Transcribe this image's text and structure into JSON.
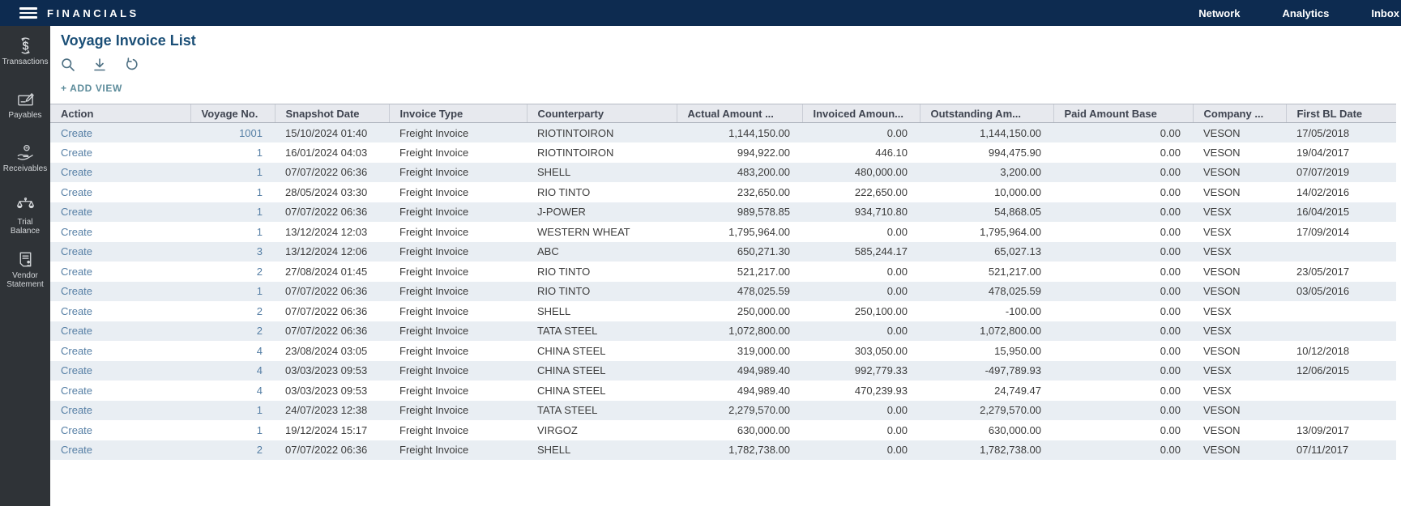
{
  "topbar": {
    "brand": "FINANCIALS",
    "links": [
      {
        "label": "Network"
      },
      {
        "label": "Analytics"
      },
      {
        "label": "Inbox"
      }
    ]
  },
  "sidebar": {
    "items": [
      {
        "icon": "transactions-icon",
        "label": "Transactions"
      },
      {
        "icon": "payables-icon",
        "label": "Payables"
      },
      {
        "icon": "receivables-icon",
        "label": "Receivables"
      },
      {
        "icon": "trial-balance-icon",
        "label": "Trial",
        "label2": "Balance"
      },
      {
        "icon": "vendor-statement-icon",
        "label": "Vendor",
        "label2": "Statement"
      }
    ]
  },
  "page": {
    "title": "Voyage Invoice List",
    "toolbar_icons": [
      "search-icon",
      "download-icon",
      "reset-icon"
    ],
    "add_view_label": "+ ADD VIEW"
  },
  "colors": {
    "topbar_bg": "#0d2b50",
    "sidebar_bg": "#2f3337",
    "title_text": "#1b4f77",
    "link_text": "#567fa5",
    "header_bg": "#e7e9ee",
    "row_alt_bg": "#e9eef3",
    "accent_teal": "#5d8c9b"
  },
  "table": {
    "columns": [
      {
        "key": "action",
        "label": "Action",
        "align": "left",
        "link": true
      },
      {
        "key": "voyage_no",
        "label": "Voyage No.",
        "align": "right",
        "link": true
      },
      {
        "key": "snapshot_date",
        "label": "Snapshot Date",
        "align": "left"
      },
      {
        "key": "invoice_type",
        "label": "Invoice Type",
        "align": "left"
      },
      {
        "key": "counterparty",
        "label": "Counterparty",
        "align": "left"
      },
      {
        "key": "actual",
        "label": "Actual Amount ...",
        "align": "right"
      },
      {
        "key": "invoiced",
        "label": "Invoiced Amoun...",
        "align": "right"
      },
      {
        "key": "outstanding",
        "label": "Outstanding Am...",
        "align": "right"
      },
      {
        "key": "paid",
        "label": "Paid Amount Base",
        "align": "right"
      },
      {
        "key": "company",
        "label": "Company ...",
        "align": "left"
      },
      {
        "key": "first_bl",
        "label": "First BL Date",
        "align": "left"
      }
    ],
    "rows": [
      {
        "action": "Create",
        "voyage_no": "1001",
        "snapshot_date": "15/10/2024 01:40",
        "invoice_type": "Freight Invoice",
        "counterparty": "RIOTINTOIRON",
        "actual": "1,144,150.00",
        "invoiced": "0.00",
        "outstanding": "1,144,150.00",
        "paid": "0.00",
        "company": "VESON",
        "first_bl": "17/05/2018"
      },
      {
        "action": "Create",
        "voyage_no": "1",
        "snapshot_date": "16/01/2024 04:03",
        "invoice_type": "Freight Invoice",
        "counterparty": "RIOTINTOIRON",
        "actual": "994,922.00",
        "invoiced": "446.10",
        "outstanding": "994,475.90",
        "paid": "0.00",
        "company": "VESON",
        "first_bl": "19/04/2017"
      },
      {
        "action": "Create",
        "voyage_no": "1",
        "snapshot_date": "07/07/2022 06:36",
        "invoice_type": "Freight Invoice",
        "counterparty": "SHELL",
        "actual": "483,200.00",
        "invoiced": "480,000.00",
        "outstanding": "3,200.00",
        "paid": "0.00",
        "company": "VESON",
        "first_bl": "07/07/2019"
      },
      {
        "action": "Create",
        "voyage_no": "1",
        "snapshot_date": "28/05/2024 03:30",
        "invoice_type": "Freight Invoice",
        "counterparty": "RIO TINTO",
        "actual": "232,650.00",
        "invoiced": "222,650.00",
        "outstanding": "10,000.00",
        "paid": "0.00",
        "company": "VESON",
        "first_bl": "14/02/2016"
      },
      {
        "action": "Create",
        "voyage_no": "1",
        "snapshot_date": "07/07/2022 06:36",
        "invoice_type": "Freight Invoice",
        "counterparty": "J-POWER",
        "actual": "989,578.85",
        "invoiced": "934,710.80",
        "outstanding": "54,868.05",
        "paid": "0.00",
        "company": "VESX",
        "first_bl": "16/04/2015"
      },
      {
        "action": "Create",
        "voyage_no": "1",
        "snapshot_date": "13/12/2024 12:03",
        "invoice_type": "Freight Invoice",
        "counterparty": "WESTERN WHEAT",
        "actual": "1,795,964.00",
        "invoiced": "0.00",
        "outstanding": "1,795,964.00",
        "paid": "0.00",
        "company": "VESX",
        "first_bl": "17/09/2014"
      },
      {
        "action": "Create",
        "voyage_no": "3",
        "snapshot_date": "13/12/2024 12:06",
        "invoice_type": "Freight Invoice",
        "counterparty": "ABC",
        "actual": "650,271.30",
        "invoiced": "585,244.17",
        "outstanding": "65,027.13",
        "paid": "0.00",
        "company": "VESX",
        "first_bl": ""
      },
      {
        "action": "Create",
        "voyage_no": "2",
        "snapshot_date": "27/08/2024 01:45",
        "invoice_type": "Freight Invoice",
        "counterparty": "RIO TINTO",
        "actual": "521,217.00",
        "invoiced": "0.00",
        "outstanding": "521,217.00",
        "paid": "0.00",
        "company": "VESON",
        "first_bl": "23/05/2017"
      },
      {
        "action": "Create",
        "voyage_no": "1",
        "snapshot_date": "07/07/2022 06:36",
        "invoice_type": "Freight Invoice",
        "counterparty": "RIO TINTO",
        "actual": "478,025.59",
        "invoiced": "0.00",
        "outstanding": "478,025.59",
        "paid": "0.00",
        "company": "VESON",
        "first_bl": "03/05/2016"
      },
      {
        "action": "Create",
        "voyage_no": "2",
        "snapshot_date": "07/07/2022 06:36",
        "invoice_type": "Freight Invoice",
        "counterparty": "SHELL",
        "actual": "250,000.00",
        "invoiced": "250,100.00",
        "outstanding": "-100.00",
        "paid": "0.00",
        "company": "VESX",
        "first_bl": ""
      },
      {
        "action": "Create",
        "voyage_no": "2",
        "snapshot_date": "07/07/2022 06:36",
        "invoice_type": "Freight Invoice",
        "counterparty": "TATA STEEL",
        "actual": "1,072,800.00",
        "invoiced": "0.00",
        "outstanding": "1,072,800.00",
        "paid": "0.00",
        "company": "VESX",
        "first_bl": ""
      },
      {
        "action": "Create",
        "voyage_no": "4",
        "snapshot_date": "23/08/2024 03:05",
        "invoice_type": "Freight Invoice",
        "counterparty": "CHINA STEEL",
        "actual": "319,000.00",
        "invoiced": "303,050.00",
        "outstanding": "15,950.00",
        "paid": "0.00",
        "company": "VESON",
        "first_bl": "10/12/2018"
      },
      {
        "action": "Create",
        "voyage_no": "4",
        "snapshot_date": "03/03/2023 09:53",
        "invoice_type": "Freight Invoice",
        "counterparty": "CHINA STEEL",
        "actual": "494,989.40",
        "invoiced": "992,779.33",
        "outstanding": "-497,789.93",
        "paid": "0.00",
        "company": "VESX",
        "first_bl": "12/06/2015"
      },
      {
        "action": "Create",
        "voyage_no": "4",
        "snapshot_date": "03/03/2023 09:53",
        "invoice_type": "Freight Invoice",
        "counterparty": "CHINA STEEL",
        "actual": "494,989.40",
        "invoiced": "470,239.93",
        "outstanding": "24,749.47",
        "paid": "0.00",
        "company": "VESX",
        "first_bl": ""
      },
      {
        "action": "Create",
        "voyage_no": "1",
        "snapshot_date": "24/07/2023 12:38",
        "invoice_type": "Freight Invoice",
        "counterparty": "TATA STEEL",
        "actual": "2,279,570.00",
        "invoiced": "0.00",
        "outstanding": "2,279,570.00",
        "paid": "0.00",
        "company": "VESON",
        "first_bl": ""
      },
      {
        "action": "Create",
        "voyage_no": "1",
        "snapshot_date": "19/12/2024 15:17",
        "invoice_type": "Freight Invoice",
        "counterparty": "VIRGOZ",
        "actual": "630,000.00",
        "invoiced": "0.00",
        "outstanding": "630,000.00",
        "paid": "0.00",
        "company": "VESON",
        "first_bl": "13/09/2017"
      },
      {
        "action": "Create",
        "voyage_no": "2",
        "snapshot_date": "07/07/2022 06:36",
        "invoice_type": "Freight Invoice",
        "counterparty": "SHELL",
        "actual": "1,782,738.00",
        "invoiced": "0.00",
        "outstanding": "1,782,738.00",
        "paid": "0.00",
        "company": "VESON",
        "first_bl": "07/11/2017"
      }
    ]
  }
}
